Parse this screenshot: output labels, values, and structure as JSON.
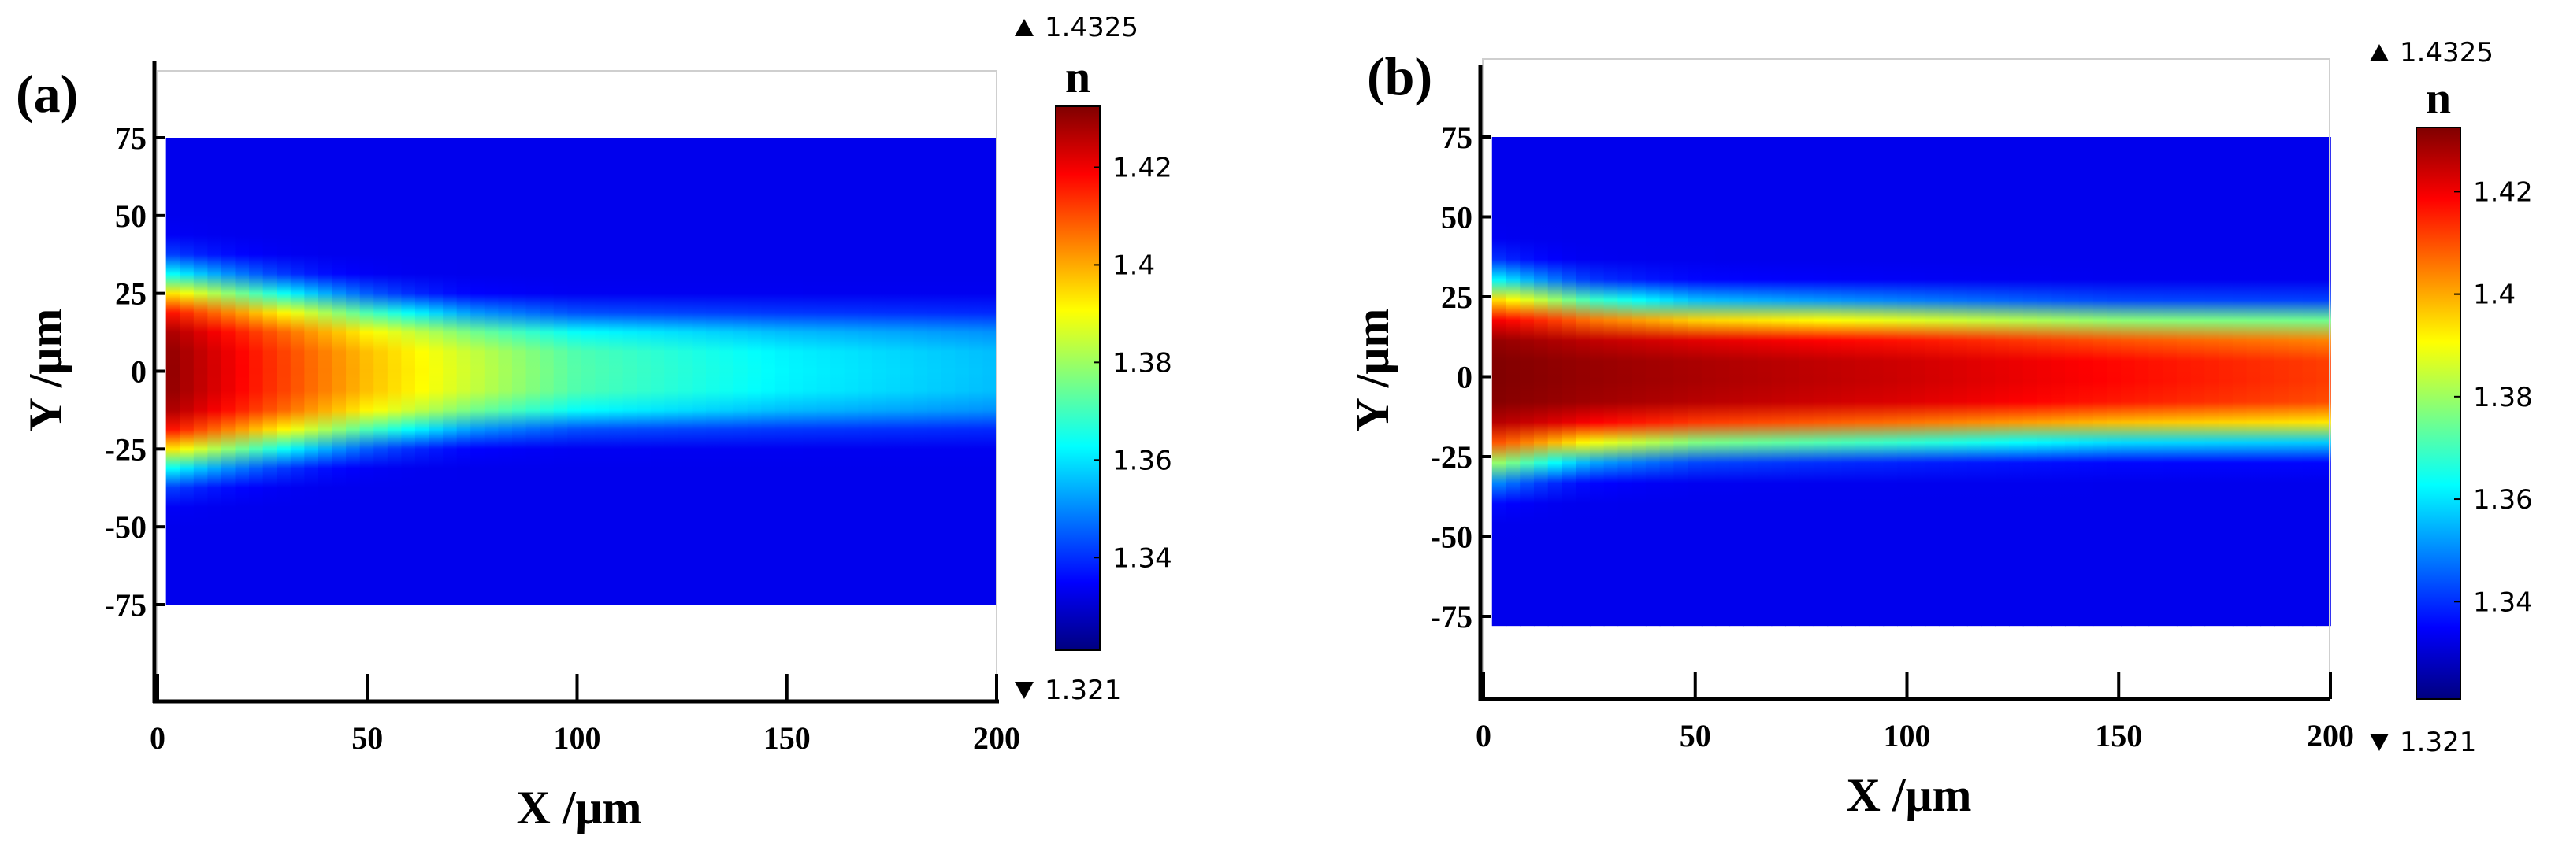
{
  "chart_data": [
    {
      "type": "heatmap",
      "panel_label": "(a)",
      "xlabel": "X /μm",
      "ylabel": "Y /μm",
      "xlim": [
        0,
        200
      ],
      "ylim": [
        -100,
        100
      ],
      "x_ticks": [
        0,
        50,
        100,
        150,
        200
      ],
      "x_tick_labels": [
        "0",
        "50",
        "100",
        "150",
        "200"
      ],
      "y_ticks": [
        75,
        50,
        25,
        0,
        -25,
        -50,
        -75
      ],
      "y_tick_labels": [
        "75",
        "50",
        "25",
        "0",
        "-25",
        "-50",
        "-75"
      ],
      "data_extent": {
        "x": [
          2,
          200
        ],
        "y": [
          -75,
          75
        ]
      },
      "field_description": "refractive index; high-index core tapering with X",
      "profile": [
        {
          "x": 0,
          "core_n": 1.4325,
          "half_width": 28
        },
        {
          "x": 25,
          "core_n": 1.415,
          "half_width": 24
        },
        {
          "x": 50,
          "core_n": 1.398,
          "half_width": 20
        },
        {
          "x": 75,
          "core_n": 1.385,
          "half_width": 17
        },
        {
          "x": 100,
          "core_n": 1.372,
          "half_width": 16
        },
        {
          "x": 150,
          "core_n": 1.362,
          "half_width": 16
        },
        {
          "x": 200,
          "core_n": 1.356,
          "half_width": 16
        }
      ],
      "colorbar": {
        "title": "n",
        "min": 1.321,
        "max": 1.4325,
        "min_label": "1.321",
        "max_label": "1.4325",
        "ticks": [
          1.42,
          1.4,
          1.38,
          1.36,
          1.34
        ],
        "tick_labels": [
          "1.42",
          "1.4",
          "1.38",
          "1.36",
          "1.34"
        ]
      }
    },
    {
      "type": "heatmap",
      "panel_label": "(b)",
      "xlabel": "X /μm",
      "ylabel": "Y /μm",
      "xlim": [
        0,
        200
      ],
      "ylim": [
        -100,
        100
      ],
      "x_ticks": [
        0,
        50,
        100,
        150,
        200
      ],
      "x_tick_labels": [
        "0",
        "50",
        "100",
        "150",
        "200"
      ],
      "y_ticks": [
        75,
        50,
        25,
        0,
        -25,
        -50,
        -75
      ],
      "y_tick_labels": [
        "75",
        "50",
        "25",
        "0",
        "-25",
        "-50",
        "-75"
      ],
      "data_extent": {
        "x": [
          2,
          200
        ],
        "y": [
          -78,
          75
        ]
      },
      "field_description": "refractive index; confined high-index core along X",
      "profile": [
        {
          "x": 0,
          "core_n": 1.4325,
          "half_width": 27
        },
        {
          "x": 25,
          "core_n": 1.43,
          "half_width": 22
        },
        {
          "x": 50,
          "core_n": 1.428,
          "half_width": 20
        },
        {
          "x": 100,
          "core_n": 1.424,
          "half_width": 19
        },
        {
          "x": 150,
          "core_n": 1.418,
          "half_width": 18
        },
        {
          "x": 200,
          "core_n": 1.412,
          "half_width": 18
        }
      ],
      "colorbar": {
        "title": "n",
        "min": 1.321,
        "max": 1.4325,
        "min_label": "1.321",
        "max_label": "1.4325",
        "ticks": [
          1.42,
          1.4,
          1.38,
          1.36,
          1.34
        ],
        "tick_labels": [
          "1.42",
          "1.4",
          "1.38",
          "1.36",
          "1.34"
        ]
      }
    }
  ],
  "colormap": [
    "#00007f",
    "#0000ff",
    "#007fff",
    "#00ffff",
    "#7fff7f",
    "#ffff00",
    "#ff7f00",
    "#ff0000",
    "#7f0000"
  ]
}
